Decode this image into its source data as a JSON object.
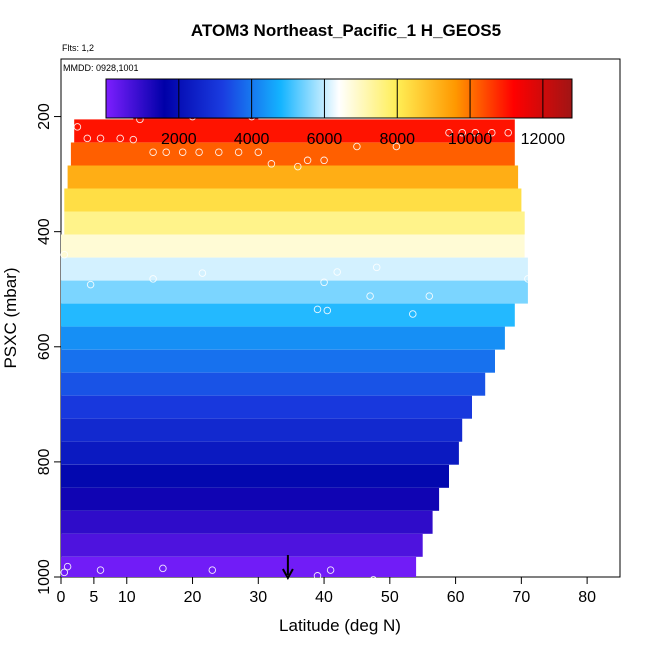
{
  "chart_data": {
    "type": "heatmap",
    "title": "ATOM3 Northeast_Pacific_1 H_GEOS5",
    "flights_label": "Flts: 1,2",
    "dates_label": "MMDD: 0928,1001",
    "xlabel": "Latitude (deg N)",
    "ylabel": "PSXC (mbar)",
    "xlim": [
      0,
      85
    ],
    "ylim": [
      1000,
      100
    ],
    "x_ticks": [
      0,
      5,
      10,
      20,
      30,
      40,
      50,
      60,
      70,
      80
    ],
    "y_ticks": [
      200,
      400,
      600,
      800,
      1000
    ],
    "colorbar": {
      "min": 0,
      "max": 12800,
      "ticks": [
        2000,
        4000,
        6000,
        8000,
        10000,
        12000
      ],
      "colors": [
        "#7d1fff",
        "#0000a8",
        "#1a3ce0",
        "#14b4ff",
        "#ffffff",
        "#ffee55",
        "#ff9800",
        "#ff0000",
        "#a01515"
      ]
    },
    "bands": [
      {
        "p_top": 170,
        "p_bot": 205,
        "lat_min": 11,
        "lat_max": 30,
        "value": 12200
      },
      {
        "p_top": 205,
        "p_bot": 245,
        "lat_min": 2,
        "lat_max": 69,
        "value": 11000
      },
      {
        "p_top": 245,
        "p_bot": 285,
        "lat_min": 1.5,
        "lat_max": 69,
        "value": 10200
      },
      {
        "p_top": 285,
        "p_bot": 325,
        "lat_min": 1,
        "lat_max": 69.5,
        "value": 9200
      },
      {
        "p_top": 325,
        "p_bot": 365,
        "lat_min": 0.5,
        "lat_max": 70,
        "value": 8300
      },
      {
        "p_top": 365,
        "p_bot": 405,
        "lat_min": 0.5,
        "lat_max": 70.5,
        "value": 7500
      },
      {
        "p_top": 405,
        "p_bot": 445,
        "lat_min": 0,
        "lat_max": 70.5,
        "value": 6800
      },
      {
        "p_top": 445,
        "p_bot": 485,
        "lat_min": 0,
        "lat_max": 71,
        "value": 6100
      },
      {
        "p_top": 485,
        "p_bot": 525,
        "lat_min": 0,
        "lat_max": 71,
        "value": 5500
      },
      {
        "p_top": 525,
        "p_bot": 565,
        "lat_min": 0,
        "lat_max": 69,
        "value": 4900
      },
      {
        "p_top": 565,
        "p_bot": 605,
        "lat_min": 0,
        "lat_max": 67.5,
        "value": 4300
      },
      {
        "p_top": 605,
        "p_bot": 645,
        "lat_min": 0,
        "lat_max": 66,
        "value": 3900
      },
      {
        "p_top": 645,
        "p_bot": 685,
        "lat_min": 0,
        "lat_max": 64.5,
        "value": 3500
      },
      {
        "p_top": 685,
        "p_bot": 725,
        "lat_min": 0,
        "lat_max": 62.5,
        "value": 3100
      },
      {
        "p_top": 725,
        "p_bot": 765,
        "lat_min": 0,
        "lat_max": 61,
        "value": 2700
      },
      {
        "p_top": 765,
        "p_bot": 805,
        "lat_min": 0,
        "lat_max": 60.5,
        "value": 2300
      },
      {
        "p_top": 805,
        "p_bot": 845,
        "lat_min": 0,
        "lat_max": 59,
        "value": 1800
      },
      {
        "p_top": 845,
        "p_bot": 885,
        "lat_min": 0,
        "lat_max": 57.5,
        "value": 1400
      },
      {
        "p_top": 885,
        "p_bot": 925,
        "lat_min": 0,
        "lat_max": 56.5,
        "value": 1000
      },
      {
        "p_top": 925,
        "p_bot": 965,
        "lat_min": 0,
        "lat_max": 55,
        "value": 600
      },
      {
        "p_top": 965,
        "p_bot": 1005,
        "lat_min": 0,
        "lat_max": 54,
        "value": 150
      }
    ],
    "observations": [
      {
        "lat": 12,
        "p": 205
      },
      {
        "lat": 20,
        "p": 200
      },
      {
        "lat": 26,
        "p": 190
      },
      {
        "lat": 29,
        "p": 200
      },
      {
        "lat": 2.5,
        "p": 218
      },
      {
        "lat": 4,
        "p": 238
      },
      {
        "lat": 6,
        "p": 238
      },
      {
        "lat": 9,
        "p": 238
      },
      {
        "lat": 11,
        "p": 240
      },
      {
        "lat": 59,
        "p": 228
      },
      {
        "lat": 61,
        "p": 228
      },
      {
        "lat": 63,
        "p": 228
      },
      {
        "lat": 65.5,
        "p": 228
      },
      {
        "lat": 68,
        "p": 228
      },
      {
        "lat": 14,
        "p": 262
      },
      {
        "lat": 16,
        "p": 262
      },
      {
        "lat": 18.5,
        "p": 262
      },
      {
        "lat": 21,
        "p": 262
      },
      {
        "lat": 24,
        "p": 262
      },
      {
        "lat": 27,
        "p": 262
      },
      {
        "lat": 30,
        "p": 262
      },
      {
        "lat": 45,
        "p": 252
      },
      {
        "lat": 51,
        "p": 252
      },
      {
        "lat": 32,
        "p": 282
      },
      {
        "lat": 36,
        "p": 287
      },
      {
        "lat": 37.5,
        "p": 276
      },
      {
        "lat": 40,
        "p": 276
      },
      {
        "lat": 0.5,
        "p": 440
      },
      {
        "lat": 42,
        "p": 470
      },
      {
        "lat": 48,
        "p": 462
      },
      {
        "lat": 21.5,
        "p": 472
      },
      {
        "lat": 4.5,
        "p": 492
      },
      {
        "lat": 14,
        "p": 482
      },
      {
        "lat": 40,
        "p": 488
      },
      {
        "lat": 71,
        "p": 482
      },
      {
        "lat": 47,
        "p": 512
      },
      {
        "lat": 56,
        "p": 512
      },
      {
        "lat": 39,
        "p": 535
      },
      {
        "lat": 40.5,
        "p": 537
      },
      {
        "lat": 53.5,
        "p": 543
      },
      {
        "lat": 1,
        "p": 982
      },
      {
        "lat": 6,
        "p": 988
      },
      {
        "lat": 15.5,
        "p": 985
      },
      {
        "lat": 23,
        "p": 988
      },
      {
        "lat": 0.5,
        "p": 992
      },
      {
        "lat": 39,
        "p": 998
      },
      {
        "lat": 41,
        "p": 988
      },
      {
        "lat": 47.5,
        "p": 1005
      }
    ],
    "marker": {
      "lat": 34.5,
      "p": 1000
    }
  }
}
